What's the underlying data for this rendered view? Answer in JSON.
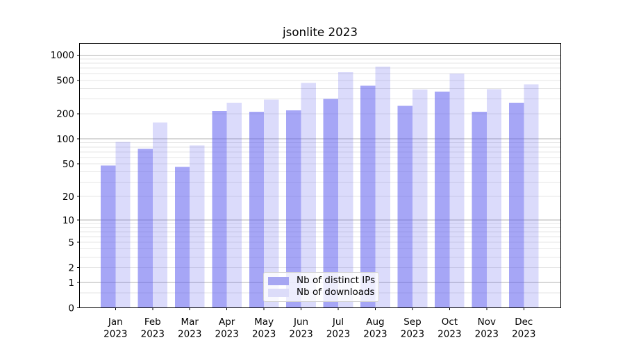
{
  "figure": {
    "title": "jsonlite 2023"
  },
  "chart_data": {
    "type": "bar",
    "title": "jsonlite 2023",
    "categories": [
      "Jan",
      "Feb",
      "Mar",
      "Apr",
      "May",
      "Jun",
      "Jul",
      "Aug",
      "Sep",
      "Oct",
      "Nov",
      "Dec"
    ],
    "x_year_label": "2023",
    "series": [
      {
        "name": "Nb of distinct IPs",
        "values": [
          48,
          76,
          46,
          216,
          211,
          220,
          301,
          433,
          249,
          366,
          211,
          270
        ],
        "bar_color": "rgba(85,85,238,0.52)",
        "legend_color": "#a6a6f2"
      },
      {
        "name": "Nb of downloads",
        "values": [
          92,
          158,
          84,
          270,
          295,
          466,
          626,
          725,
          389,
          605,
          394,
          447
        ],
        "bar_color": "rgba(85,85,238,0.21)",
        "legend_color": "#dcdcf9"
      }
    ],
    "y_axis": {
      "scale": "log10(v+1)",
      "tick_labels": [
        0,
        1,
        2,
        5,
        10,
        20,
        50,
        100,
        200,
        500,
        1000
      ],
      "ylim": [
        0,
        1400
      ]
    },
    "grid": {
      "enabled": true,
      "major_color": "#b2b2b2",
      "minor_color": "#e6e6e6"
    },
    "legend_position": "lower center",
    "axis_color": "#000000"
  }
}
